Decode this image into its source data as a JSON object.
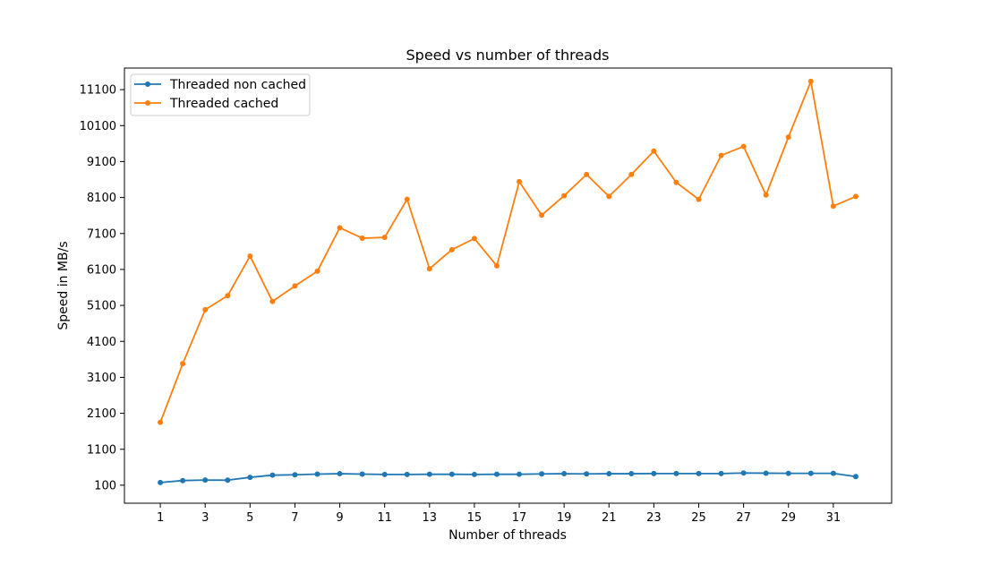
{
  "chart_data": {
    "type": "line",
    "title": "Speed vs number of threads",
    "xlabel": "Number of threads",
    "ylabel": "Speed in MB/s",
    "xlim": [
      -0.6,
      33.6
    ],
    "ylim": [
      -400,
      11700
    ],
    "xticks": [
      1,
      3,
      5,
      7,
      9,
      11,
      13,
      15,
      17,
      19,
      21,
      23,
      25,
      27,
      29,
      31
    ],
    "yticks": [
      100,
      1100,
      2100,
      3100,
      4100,
      5100,
      6100,
      7100,
      8100,
      9100,
      10100,
      11100
    ],
    "legend_position": "upper left",
    "x": [
      1,
      2,
      3,
      4,
      5,
      6,
      7,
      8,
      9,
      10,
      11,
      12,
      13,
      14,
      15,
      16,
      17,
      18,
      19,
      20,
      21,
      22,
      23,
      24,
      25,
      26,
      27,
      28,
      29,
      30,
      31,
      32
    ],
    "series": [
      {
        "name": "Threaded non cached",
        "color": "#1f77b4",
        "values": [
          175,
          230,
          245,
          240,
          320,
          380,
          390,
          410,
          420,
          410,
          400,
          400,
          405,
          405,
          400,
          405,
          405,
          415,
          420,
          415,
          420,
          420,
          425,
          425,
          425,
          425,
          440,
          435,
          430,
          430,
          430,
          340
        ]
      },
      {
        "name": "Threaded cached",
        "color": "#ff7f0e",
        "values": [
          1850,
          3480,
          4980,
          5370,
          6470,
          5210,
          5640,
          6050,
          7260,
          6970,
          6990,
          8050,
          6120,
          6650,
          6960,
          6200,
          8540,
          7610,
          8150,
          8740,
          8130,
          8740,
          9390,
          8520,
          8050,
          9270,
          9520,
          8170,
          9780,
          11330,
          7860,
          8130
        ]
      }
    ]
  }
}
